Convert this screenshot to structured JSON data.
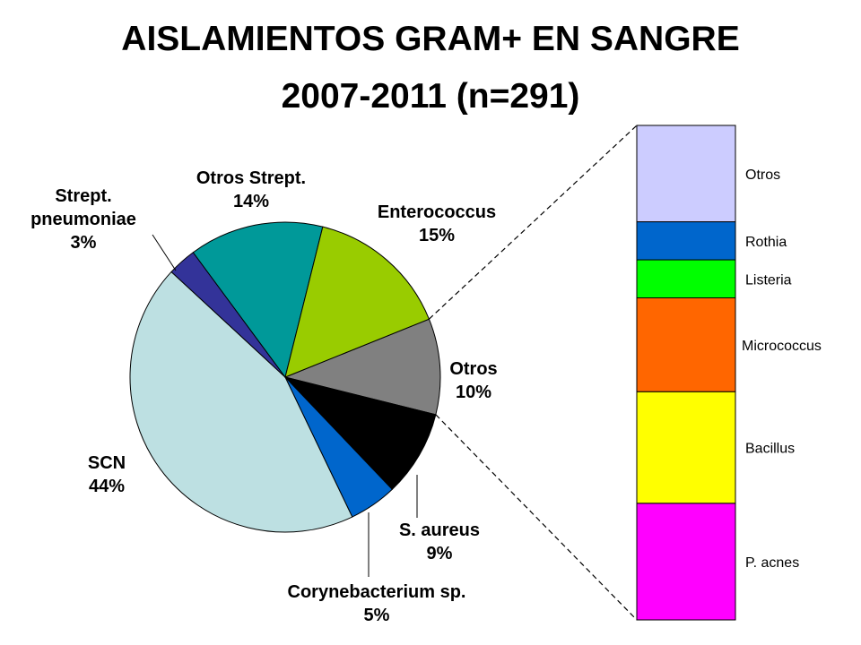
{
  "chart_data": [
    {
      "type": "pie",
      "title": "AISLAMIENTOS GRAM+ EN SANGRE",
      "subtitle": "2007-2011 (n=291)",
      "slices": [
        {
          "name": "Otros",
          "value": 10,
          "label": "10%",
          "color": "#808080"
        },
        {
          "name": "S. aureus",
          "value": 9,
          "label": "9%",
          "color": "#000000"
        },
        {
          "name": "Corynebacterium sp.",
          "value": 5,
          "label": "5%",
          "color": "#0066cc"
        },
        {
          "name": "SCN",
          "value": 44,
          "label": "44%",
          "color": "#bde0e2"
        },
        {
          "name": "Strept. pneumoniae",
          "value": 3,
          "label": "3%",
          "color": "#333399"
        },
        {
          "name": "Otros Strept.",
          "value": 14,
          "label": "14%",
          "color": "#009999"
        },
        {
          "name": "Enterococcus",
          "value": 15,
          "label": "15%",
          "color": "#99cc00"
        }
      ]
    },
    {
      "type": "bar",
      "stacked": true,
      "breakdown_of": "Otros",
      "segments": [
        {
          "name": "P. acnes",
          "value": 23,
          "color": "#ff00ff"
        },
        {
          "name": "Bacillus",
          "value": 22,
          "color": "#ffff00"
        },
        {
          "name": "Micrococcus",
          "value": 18.5,
          "color": "#ff6600"
        },
        {
          "name": "Listeria",
          "value": 7.5,
          "color": "#00ff00"
        },
        {
          "name": "Rothia",
          "value": 7.5,
          "color": "#0066cc"
        },
        {
          "name": "Otros",
          "value": 19,
          "color": "#ccccff"
        }
      ]
    }
  ]
}
